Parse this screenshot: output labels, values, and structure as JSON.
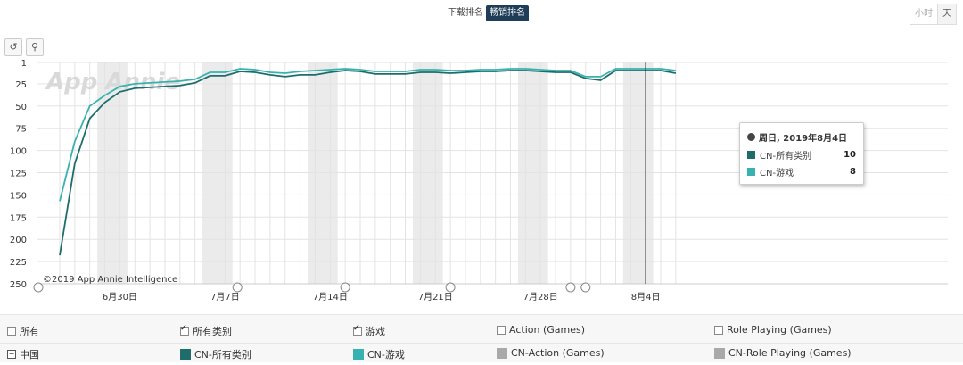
{
  "tabs": [
    {
      "label": "下载排名",
      "active": false
    },
    {
      "label": "畅销排名",
      "active": true
    }
  ],
  "time_switch": [
    "小时",
    "天"
  ],
  "watermark": "App Annie",
  "copyright": "©2019 App Annie Intelligence",
  "tooltip": {
    "title": "周日, 2019年8月4日",
    "rows": [
      {
        "name": "CN-所有类别",
        "value": "10"
      },
      {
        "name": "CN-游戏",
        "value": "8"
      }
    ]
  },
  "legend": {
    "row1": [
      {
        "label": "所有",
        "checked": false
      },
      {
        "label": "所有类别",
        "checked": true
      },
      {
        "label": "游戏",
        "checked": true
      },
      {
        "label": "Action (Games)",
        "checked": false
      },
      {
        "label": "Role Playing (Games)",
        "checked": false
      }
    ],
    "row2": [
      {
        "label": "中国"
      },
      {
        "label": "CN-所有类别",
        "color": "#1f6d6b"
      },
      {
        "label": "CN-游戏",
        "color": "#38b2b0"
      },
      {
        "label": "CN-Action (Games)",
        "color": "#a9a9a9"
      },
      {
        "label": "CN-Role Playing (Games)",
        "color": "#a9a9a9"
      }
    ]
  },
  "chart_data": {
    "type": "line",
    "x": [
      "6/26",
      "6/27",
      "6/28",
      "6/29",
      "6/30",
      "7/1",
      "7/2",
      "7/3",
      "7/4",
      "7/5",
      "7/6",
      "7/7",
      "7/8",
      "7/9",
      "7/10",
      "7/11",
      "7/12",
      "7/13",
      "7/14",
      "7/15",
      "7/16",
      "7/17",
      "7/18",
      "7/19",
      "7/20",
      "7/21",
      "7/22",
      "7/23",
      "7/24",
      "7/25",
      "7/26",
      "7/27",
      "7/28",
      "7/29",
      "7/30",
      "7/31",
      "8/1",
      "8/2",
      "8/3",
      "8/4",
      "8/5",
      "8/6"
    ],
    "x_tick_labels": [
      "6月30日",
      "7月7日",
      "7月14日",
      "7月21日",
      "7月28日",
      "8月4日"
    ],
    "y_tick_labels": [
      "1",
      "25",
      "50",
      "75",
      "100",
      "125",
      "150",
      "175",
      "200",
      "225",
      "250"
    ],
    "ylim": [
      1,
      250
    ],
    "y_reversed": true,
    "weekend_bands": true,
    "series": [
      {
        "name": "CN-所有类别",
        "color": "#1f6d6b",
        "values": [
          218,
          115,
          64,
          46,
          34,
          30,
          29,
          28,
          27,
          24,
          16,
          16,
          11,
          12,
          15,
          17,
          15,
          15,
          12,
          10,
          11,
          14,
          14,
          14,
          12,
          12,
          13,
          12,
          11,
          11,
          10,
          10,
          11,
          12,
          12,
          19,
          21,
          10,
          10,
          10,
          10,
          13
        ]
      },
      {
        "name": "CN-游戏",
        "color": "#38b2b0",
        "values": [
          157,
          90,
          50,
          38,
          28,
          25,
          24,
          23,
          22,
          20,
          12,
          12,
          8,
          9,
          12,
          13,
          11,
          10,
          9,
          8,
          9,
          11,
          11,
          11,
          9,
          9,
          10,
          10,
          9,
          9,
          8,
          8,
          9,
          10,
          10,
          17,
          17,
          8,
          8,
          8,
          8,
          10
        ]
      }
    ],
    "tooltip_date": "8/4",
    "event_marker_dates": [
      "6/26",
      "7/8",
      "7/15",
      "7/22",
      "7/30",
      "7/31"
    ]
  }
}
